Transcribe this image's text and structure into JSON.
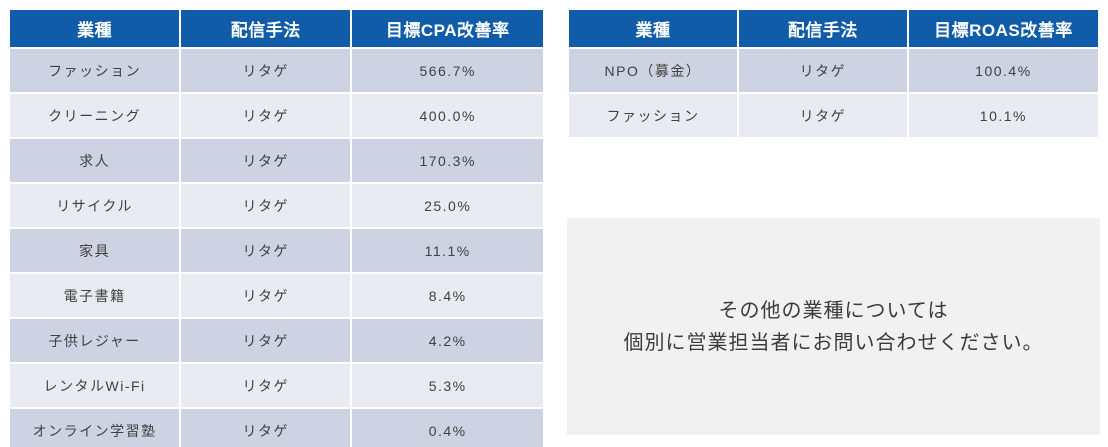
{
  "colors": {
    "header_bg": "#105CA8",
    "header_text": "#FFFFFF",
    "row_odd_bg": "#CDD3E3",
    "row_even_bg": "#E9EBF3",
    "cell_text": "#404040",
    "note_bg": "#F1F1F2",
    "note_text": "#3B3B3B"
  },
  "left_table": {
    "name": "cpa-improvement-table",
    "headers": [
      "業種",
      "配信手法",
      "目標CPA改善率"
    ],
    "rows": [
      [
        "ファッション",
        "リタゲ",
        "566.7%"
      ],
      [
        "クリーニング",
        "リタゲ",
        "400.0%"
      ],
      [
        "求人",
        "リタゲ",
        "170.3%"
      ],
      [
        "リサイクル",
        "リタゲ",
        "25.0%"
      ],
      [
        "家具",
        "リタゲ",
        "11.1%"
      ],
      [
        "電子書籍",
        "リタゲ",
        "8.4%"
      ],
      [
        "子供レジャー",
        "リタゲ",
        "4.2%"
      ],
      [
        "レンタルWi-Fi",
        "リタゲ",
        "5.3%"
      ],
      [
        "オンライン学習塾",
        "リタゲ",
        "0.4%"
      ]
    ]
  },
  "right_table": {
    "name": "roas-improvement-table",
    "headers": [
      "業種",
      "配信手法",
      "目標ROAS改善率"
    ],
    "rows": [
      [
        "NPO（募金）",
        "リタゲ",
        "100.4%"
      ],
      [
        "ファッション",
        "リタゲ",
        "10.1%"
      ]
    ]
  },
  "note": {
    "line1": "その他の業種については",
    "line2": "個別に営業担当者にお問い合わせください。"
  }
}
